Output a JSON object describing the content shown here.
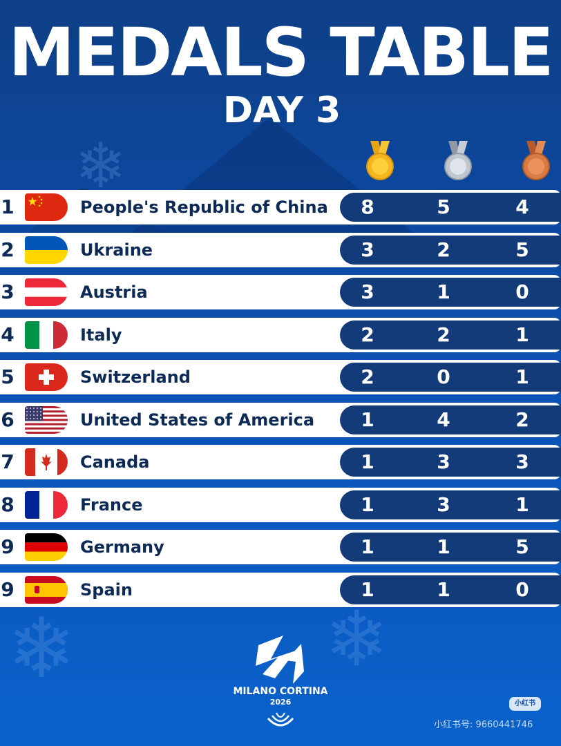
{
  "header": {
    "title": "MEDALS TABLE",
    "subtitle": "DAY 3"
  },
  "medal_icons": [
    "gold-medal-icon",
    "silver-medal-icon",
    "bronze-medal-icon"
  ],
  "colors": {
    "background": "#0c49a1",
    "count_box": "#143b79",
    "text_dark": "#0d2a57",
    "gold": "#f2b01e",
    "silver": "#b9c0c8",
    "bronze": "#d97b45"
  },
  "rows": [
    {
      "rank": "1",
      "country": "People's Republic of China",
      "flag": "china-flag-icon",
      "gold": "8",
      "silver": "5",
      "bronze": "4"
    },
    {
      "rank": "2",
      "country": "Ukraine",
      "flag": "ukraine-flag-icon",
      "gold": "3",
      "silver": "2",
      "bronze": "5"
    },
    {
      "rank": "3",
      "country": "Austria",
      "flag": "austria-flag-icon",
      "gold": "3",
      "silver": "1",
      "bronze": "0"
    },
    {
      "rank": "4",
      "country": "Italy",
      "flag": "italy-flag-icon",
      "gold": "2",
      "silver": "2",
      "bronze": "1"
    },
    {
      "rank": "5",
      "country": "Switzerland",
      "flag": "switzerland-flag-icon",
      "gold": "2",
      "silver": "0",
      "bronze": "1"
    },
    {
      "rank": "6",
      "country": "United States of America",
      "flag": "usa-flag-icon",
      "gold": "1",
      "silver": "4",
      "bronze": "2"
    },
    {
      "rank": "7",
      "country": "Canada",
      "flag": "canada-flag-icon",
      "gold": "1",
      "silver": "3",
      "bronze": "3"
    },
    {
      "rank": "8",
      "country": "France",
      "flag": "france-flag-icon",
      "gold": "1",
      "silver": "3",
      "bronze": "1"
    },
    {
      "rank": "9",
      "country": "Germany",
      "flag": "germany-flag-icon",
      "gold": "1",
      "silver": "1",
      "bronze": "5"
    },
    {
      "rank": "9",
      "country": "Spain",
      "flag": "spain-flag-icon",
      "gold": "1",
      "silver": "1",
      "bronze": "0"
    }
  ],
  "footer": {
    "logo_text": "MILANO CORTINA",
    "logo_year": "2026",
    "watermark_badge": "小红书",
    "watermark_id": "小红书号: 9660441746"
  }
}
